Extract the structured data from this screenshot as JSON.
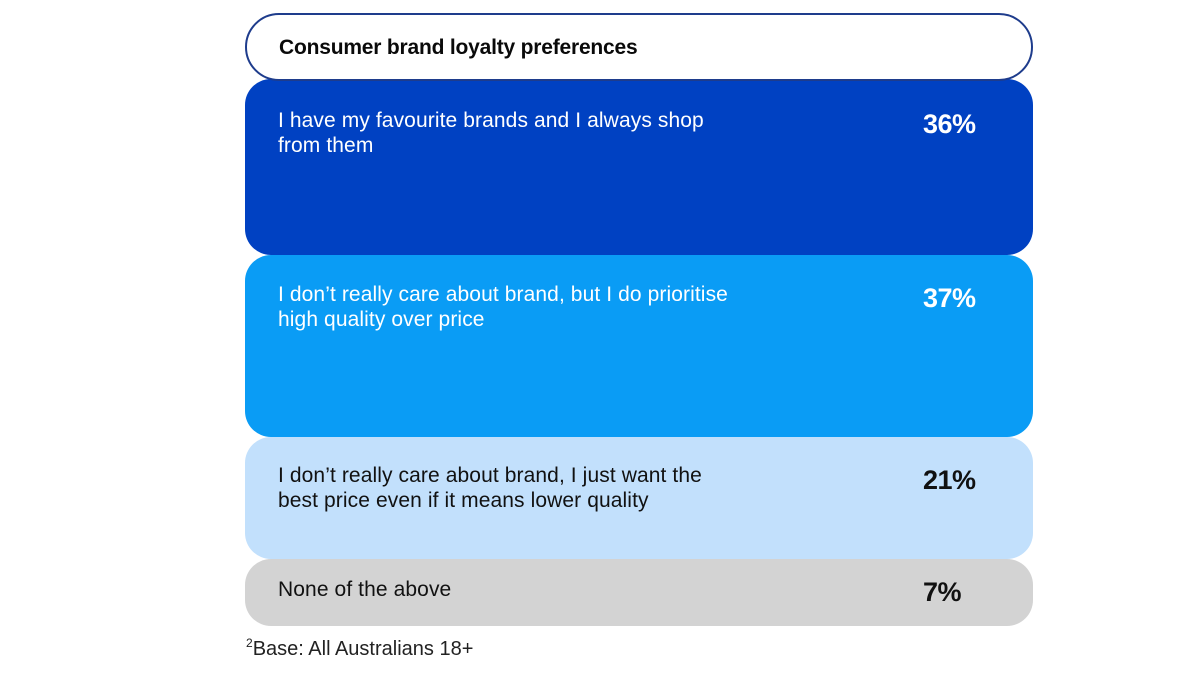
{
  "chart_data": {
    "type": "table",
    "title": "Consumer brand loyalty preferences",
    "categories": [
      "I have my favourite brands and I always shop from them",
      "I don’t really care about brand, but I do prioritise high quality over price",
      "I don’t really care about brand, I just want the best price even if it means lower quality",
      "None of the above"
    ],
    "values": [
      36,
      37,
      21,
      7
    ],
    "value_labels": [
      "36%",
      "37%",
      "21%",
      "7%"
    ],
    "colors": [
      "#0041c2",
      "#0a9cf5",
      "#c2e0fc",
      "#d3d3d3"
    ],
    "text_colors": [
      "#ffffff",
      "#ffffff",
      "#111111",
      "#111111"
    ],
    "footnote_marker": "2",
    "footnote": "Base: All Australians 18+"
  }
}
